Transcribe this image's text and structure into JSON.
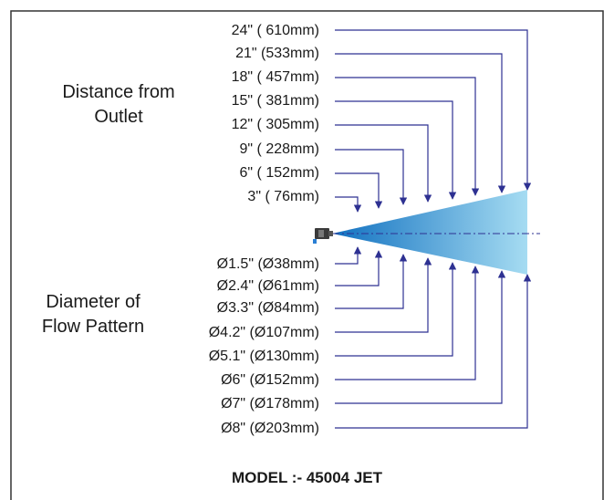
{
  "headers": {
    "distance_line1": "Distance from",
    "distance_line2": "Outlet",
    "diameter_line1": "Diameter of",
    "diameter_line2": "Flow Pattern"
  },
  "distance_labels": [
    "24\" ( 610mm)",
    "21\" (533mm)",
    "18\" ( 457mm)",
    "15\" ( 381mm)",
    "12\" ( 305mm)",
    "9\" ( 228mm)",
    "6\" ( 152mm)",
    "3\" ( 76mm)"
  ],
  "diameter_labels": [
    "Ø1.5\" (Ø38mm)",
    "Ø2.4\" (Ø61mm)",
    "Ø3.3\" (Ø84mm)",
    "Ø4.2\" (Ø107mm)",
    "Ø5.1\" (Ø130mm)",
    "Ø6\" (Ø152mm)",
    "Ø7\" (Ø178mm)",
    "Ø8\" (Ø203mm)"
  ],
  "model_label": "MODEL :- 45004 JET",
  "colors": {
    "arrow": "#2e3192",
    "jet_start": "#1070c0",
    "jet_end": "#9fd8f0",
    "frame": "#333333"
  }
}
